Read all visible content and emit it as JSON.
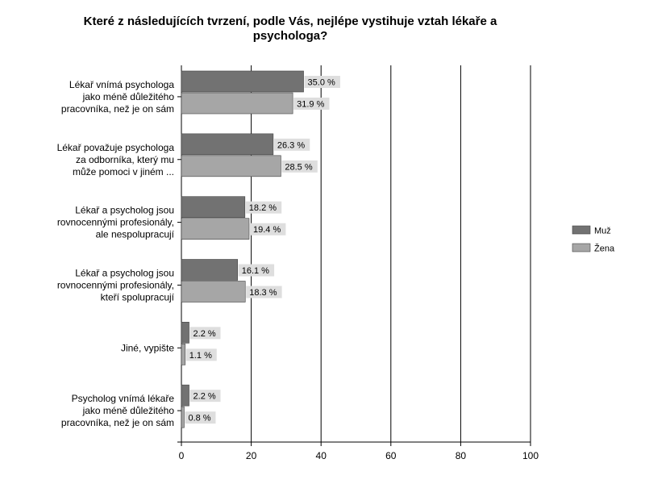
{
  "chart_data": {
    "type": "bar",
    "orientation": "horizontal",
    "title_lines": [
      "Které z následujících tvrzení, podle Vás, nejlépe vystihuje vztah lékaře a",
      "psychologa?"
    ],
    "categories": [
      [
        "Lékař vnímá psychologa",
        "jako méně důležitého",
        "pracovníka, než je on sám"
      ],
      [
        "Lékař považuje psychologa",
        "za odborníka, který mu",
        "může pomoci v jiném ..."
      ],
      [
        "Lékař a psycholog jsou",
        "rovnocennými profesionály,",
        "ale nespolupracují"
      ],
      [
        "Lékař a psycholog jsou",
        "rovnocennými profesionály,",
        "kteří spolupracují"
      ],
      [
        "Jiné, vypište"
      ],
      [
        "Psycholog vnímá lékaře",
        "jako méně důležitého",
        "pracovníka, než je on sám"
      ]
    ],
    "series": [
      {
        "name": "Muž",
        "color": "#727272",
        "values": [
          35.0,
          26.3,
          18.2,
          16.1,
          2.2,
          2.2
        ],
        "labels": [
          "35.0 %",
          "26.3 %",
          "18.2 %",
          "16.1 %",
          "2.2 %",
          "2.2 %"
        ]
      },
      {
        "name": "Žena",
        "color": "#a6a6a6",
        "values": [
          31.9,
          28.5,
          19.4,
          18.3,
          1.1,
          0.8
        ],
        "labels": [
          "31.9 %",
          "28.5 %",
          "19.4 %",
          "18.3 %",
          "1.1 %",
          "0.8 %"
        ]
      }
    ],
    "xlim": [
      0,
      100
    ],
    "xticks": [
      0,
      20,
      40,
      60,
      80,
      100
    ],
    "xtick_labels": [
      "0",
      "20",
      "40",
      "60",
      "80",
      "100"
    ],
    "grid": true,
    "legend_position": "right"
  }
}
